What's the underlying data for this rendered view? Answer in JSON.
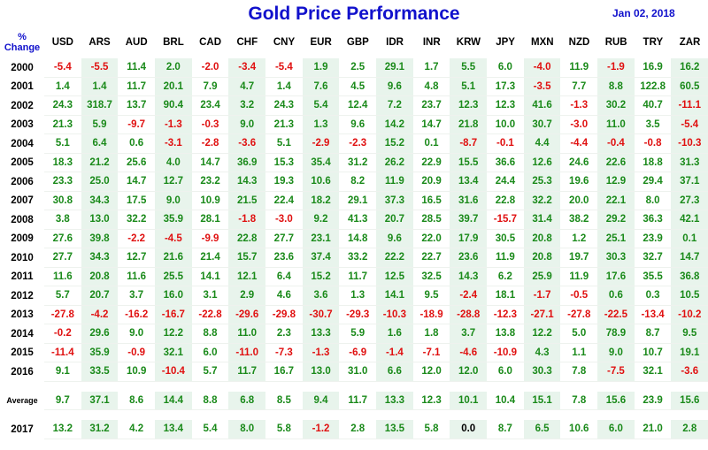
{
  "title": "Gold Price Performance",
  "date": "Jan 02, 2018",
  "header": {
    "label_line1": "%",
    "label_line2": "Change",
    "currencies": [
      "USD",
      "ARS",
      "AUD",
      "BRL",
      "CAD",
      "CHF",
      "CNY",
      "EUR",
      "GBP",
      "IDR",
      "INR",
      "KRW",
      "JPY",
      "MXN",
      "NZD",
      "RUB",
      "TRY",
      "ZAR"
    ]
  },
  "rows": [
    {
      "year": "2000",
      "values": [
        "-5.4",
        "-5.5",
        "11.4",
        "2.0",
        "-2.0",
        "-3.4",
        "-5.4",
        "1.9",
        "2.5",
        "29.1",
        "1.7",
        "5.5",
        "6.0",
        "-4.0",
        "11.9",
        "-1.9",
        "16.9",
        "16.2"
      ]
    },
    {
      "year": "2001",
      "values": [
        "1.4",
        "1.4",
        "11.7",
        "20.1",
        "7.9",
        "4.7",
        "1.4",
        "7.6",
        "4.5",
        "9.6",
        "4.8",
        "5.1",
        "17.3",
        "-3.5",
        "7.7",
        "8.8",
        "122.8",
        "60.5"
      ]
    },
    {
      "year": "2002",
      "values": [
        "24.3",
        "318.7",
        "13.7",
        "90.4",
        "23.4",
        "3.2",
        "24.3",
        "5.4",
        "12.4",
        "7.2",
        "23.7",
        "12.3",
        "12.3",
        "41.6",
        "-1.3",
        "30.2",
        "40.7",
        "-11.1"
      ]
    },
    {
      "year": "2003",
      "values": [
        "21.3",
        "5.9",
        "-9.7",
        "-1.3",
        "-0.3",
        "9.0",
        "21.3",
        "1.3",
        "9.6",
        "14.2",
        "14.7",
        "21.8",
        "10.0",
        "30.7",
        "-3.0",
        "11.0",
        "3.5",
        "-5.4"
      ]
    },
    {
      "year": "2004",
      "values": [
        "5.1",
        "6.4",
        "0.6",
        "-3.1",
        "-2.8",
        "-3.6",
        "5.1",
        "-2.9",
        "-2.3",
        "15.2",
        "0.1",
        "-8.7",
        "-0.1",
        "4.4",
        "-4.4",
        "-0.4",
        "-0.8",
        "-10.3"
      ]
    },
    {
      "year": "2005",
      "values": [
        "18.3",
        "21.2",
        "25.6",
        "4.0",
        "14.7",
        "36.9",
        "15.3",
        "35.4",
        "31.2",
        "26.2",
        "22.9",
        "15.5",
        "36.6",
        "12.6",
        "24.6",
        "22.6",
        "18.8",
        "31.3"
      ]
    },
    {
      "year": "2006",
      "values": [
        "23.3",
        "25.0",
        "14.7",
        "12.7",
        "23.2",
        "14.3",
        "19.3",
        "10.6",
        "8.2",
        "11.9",
        "20.9",
        "13.4",
        "24.4",
        "25.3",
        "19.6",
        "12.9",
        "29.4",
        "37.1"
      ]
    },
    {
      "year": "2007",
      "values": [
        "30.8",
        "34.3",
        "17.5",
        "9.0",
        "10.9",
        "21.5",
        "22.4",
        "18.2",
        "29.1",
        "37.3",
        "16.5",
        "31.6",
        "22.8",
        "32.2",
        "20.0",
        "22.1",
        "8.0",
        "27.3"
      ]
    },
    {
      "year": "2008",
      "values": [
        "3.8",
        "13.0",
        "32.2",
        "35.9",
        "28.1",
        "-1.8",
        "-3.0",
        "9.2",
        "41.3",
        "20.7",
        "28.5",
        "39.7",
        "-15.7",
        "31.4",
        "38.2",
        "29.2",
        "36.3",
        "42.1"
      ]
    },
    {
      "year": "2009",
      "values": [
        "27.6",
        "39.8",
        "-2.2",
        "-4.5",
        "-9.9",
        "22.8",
        "27.7",
        "23.1",
        "14.8",
        "9.6",
        "22.0",
        "17.9",
        "30.5",
        "20.8",
        "1.2",
        "25.1",
        "23.9",
        "0.1"
      ]
    },
    {
      "year": "2010",
      "values": [
        "27.7",
        "34.3",
        "12.7",
        "21.6",
        "21.4",
        "15.7",
        "23.6",
        "37.4",
        "33.2",
        "22.2",
        "22.7",
        "23.6",
        "11.9",
        "20.8",
        "19.7",
        "30.3",
        "32.7",
        "14.7"
      ]
    },
    {
      "year": "2011",
      "values": [
        "11.6",
        "20.8",
        "11.6",
        "25.5",
        "14.1",
        "12.1",
        "6.4",
        "15.2",
        "11.7",
        "12.5",
        "32.5",
        "14.3",
        "6.2",
        "25.9",
        "11.9",
        "17.6",
        "35.5",
        "36.8"
      ]
    },
    {
      "year": "2012",
      "values": [
        "5.7",
        "20.7",
        "3.7",
        "16.0",
        "3.1",
        "2.9",
        "4.6",
        "3.6",
        "1.3",
        "14.1",
        "9.5",
        "-2.4",
        "18.1",
        "-1.7",
        "-0.5",
        "0.6",
        "0.3",
        "10.5"
      ]
    },
    {
      "year": "2013",
      "values": [
        "-27.8",
        "-4.2",
        "-16.2",
        "-16.7",
        "-22.8",
        "-29.6",
        "-29.8",
        "-30.7",
        "-29.3",
        "-10.3",
        "-18.9",
        "-28.8",
        "-12.3",
        "-27.1",
        "-27.8",
        "-22.5",
        "-13.4",
        "-10.2"
      ]
    },
    {
      "year": "2014",
      "values": [
        "-0.2",
        "29.6",
        "9.0",
        "12.2",
        "8.8",
        "11.0",
        "2.3",
        "13.3",
        "5.9",
        "1.6",
        "1.8",
        "3.7",
        "13.8",
        "12.2",
        "5.0",
        "78.9",
        "8.7",
        "9.5"
      ]
    },
    {
      "year": "2015",
      "values": [
        "-11.4",
        "35.9",
        "-0.9",
        "32.1",
        "6.0",
        "-11.0",
        "-7.3",
        "-1.3",
        "-6.9",
        "-1.4",
        "-7.1",
        "-4.6",
        "-10.9",
        "4.3",
        "1.1",
        "9.0",
        "10.7",
        "19.1"
      ]
    },
    {
      "year": "2016",
      "values": [
        "9.1",
        "33.5",
        "10.9",
        "-10.4",
        "5.7",
        "11.7",
        "16.7",
        "13.0",
        "31.0",
        "6.6",
        "12.0",
        "12.0",
        "6.0",
        "30.3",
        "7.8",
        "-7.5",
        "32.1",
        "-3.6"
      ]
    }
  ],
  "average": {
    "label": "Average",
    "values": [
      "9.7",
      "37.1",
      "8.6",
      "14.4",
      "8.8",
      "6.8",
      "8.5",
      "9.4",
      "11.7",
      "13.3",
      "12.3",
      "10.1",
      "10.4",
      "15.1",
      "7.8",
      "15.6",
      "23.9",
      "15.6"
    ]
  },
  "y2017": {
    "year": "2017",
    "values": [
      "13.2",
      "31.2",
      "4.2",
      "13.4",
      "5.4",
      "8.0",
      "5.8",
      "-1.2",
      "2.8",
      "13.5",
      "5.8",
      "0.0",
      "8.7",
      "6.5",
      "10.6",
      "6.0",
      "21.0",
      "2.8"
    ]
  },
  "colors": {
    "title": "#1111cc",
    "positive": "#1a8a1a",
    "negative": "#e01010",
    "zero": "#000000",
    "stripe": "#e8f4ec"
  }
}
